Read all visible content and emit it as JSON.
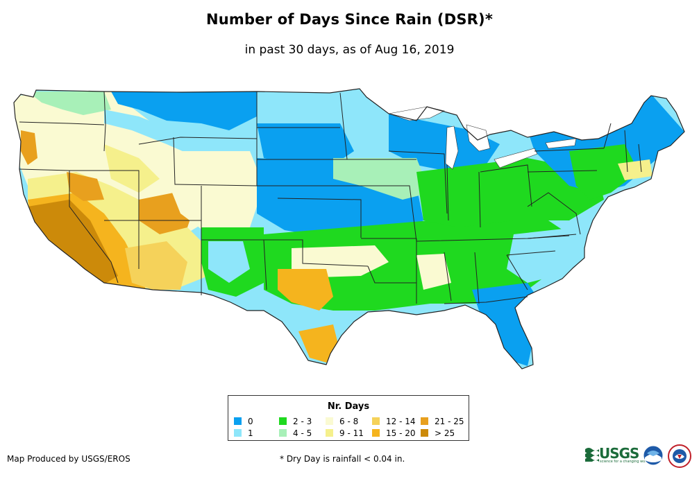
{
  "title": "Number of Days Since Rain (DSR)*",
  "subtitle": "in past 30 days, as of Aug 16, 2019",
  "legend": {
    "title": "Nr. Days",
    "items": [
      {
        "label": "0",
        "color": "#0aa0f0"
      },
      {
        "label": "1",
        "color": "#8ee6fa"
      },
      {
        "label": "2 - 3",
        "color": "#1fd91f"
      },
      {
        "label": "4 - 5",
        "color": "#a8f0b8"
      },
      {
        "label": "6 - 8",
        "color": "#fafad2"
      },
      {
        "label": "9 - 11",
        "color": "#f5f08c"
      },
      {
        "label": "12 - 14",
        "color": "#f5d25a"
      },
      {
        "label": "15 - 20",
        "color": "#f5b41e"
      },
      {
        "label": "21 - 25",
        "color": "#e8a01e"
      },
      {
        "label": "> 25",
        "color": "#cc8a0a"
      }
    ]
  },
  "credit": "Map Produced by USGS/EROS",
  "footnote": "* Dry Day is rainfall < 0.04 in.",
  "logos": {
    "usgs_name": "USGS",
    "usgs_tagline": "science for a changing world",
    "usgs_icon": "usgs-logo",
    "noaa_icon": "noaa-logo",
    "nws_icon": "nws-logo"
  }
}
